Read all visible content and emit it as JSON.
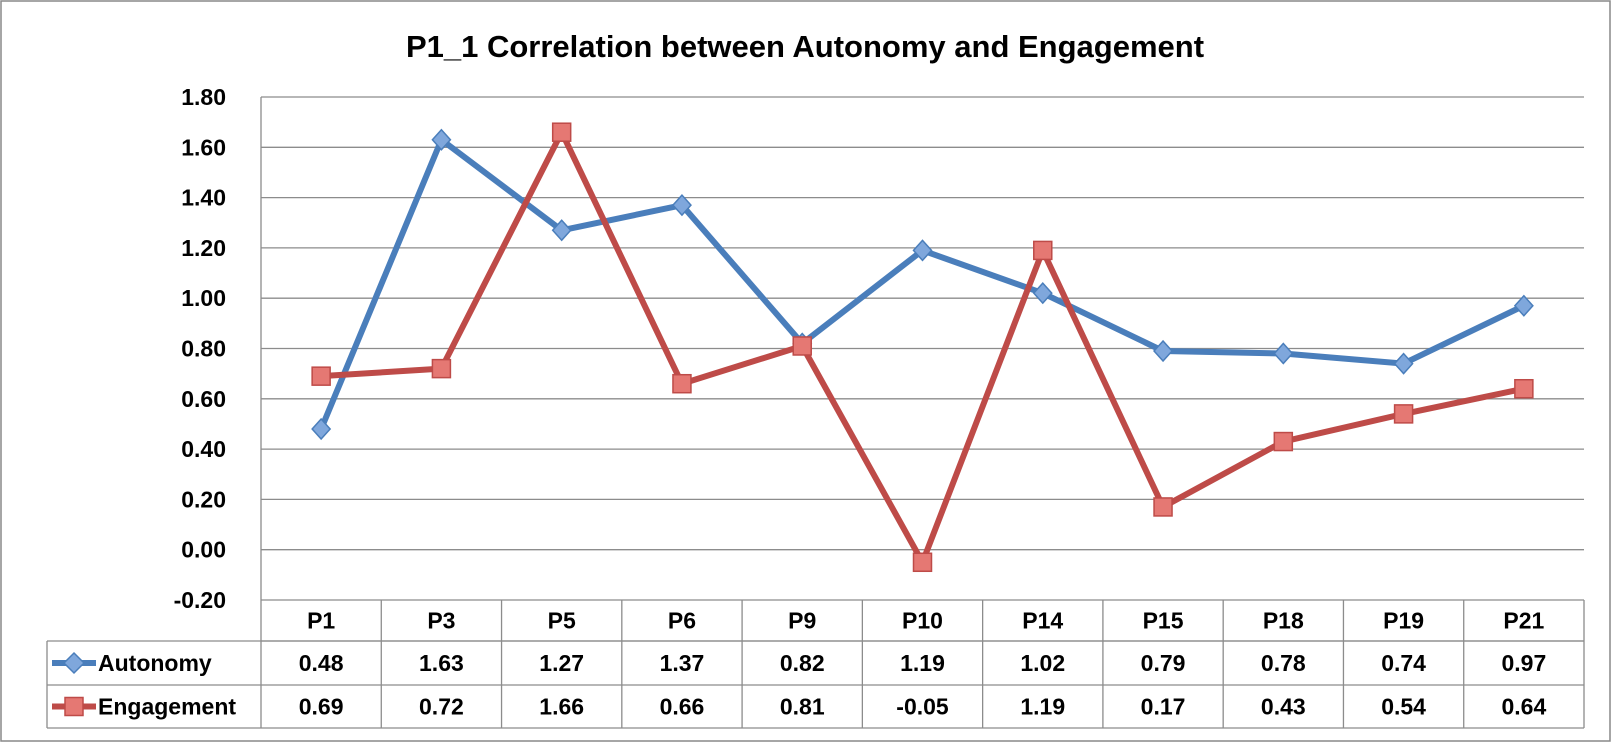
{
  "chart_data": {
    "type": "line",
    "title": "P1_1 Correlation between Autonomy and Engagement",
    "xlabel": "",
    "ylabel": "",
    "categories": [
      "P1",
      "P3",
      "P5",
      "P6",
      "P9",
      "P10",
      "P14",
      "P15",
      "P18",
      "P19",
      "P21"
    ],
    "series": [
      {
        "name": "Autonomy",
        "color": "#4a7ebb",
        "marker": "diamond",
        "values": [
          0.48,
          1.63,
          1.27,
          1.37,
          0.82,
          1.19,
          1.02,
          0.79,
          0.78,
          0.74,
          0.97
        ],
        "labels": [
          "0.48",
          "1.63",
          "1.27",
          "1.37",
          "0.82",
          "1.19",
          "1.02",
          "0.79",
          "0.78",
          "0.74",
          "0.97"
        ]
      },
      {
        "name": "Engagement",
        "color": "#be4b48",
        "marker": "square",
        "values": [
          0.69,
          0.72,
          1.66,
          0.66,
          0.81,
          -0.05,
          1.19,
          0.17,
          0.43,
          0.54,
          0.64
        ],
        "labels": [
          "0.69",
          "0.72",
          "1.66",
          "0.66",
          "0.81",
          "-0.05",
          "1.19",
          "0.17",
          "0.43",
          "0.54",
          "0.64"
        ]
      }
    ],
    "ylim": [
      -0.2,
      1.8
    ],
    "yticks": [
      "-0.20",
      "0.00",
      "0.20",
      "0.40",
      "0.60",
      "0.80",
      "1.00",
      "1.20",
      "1.40",
      "1.60",
      "1.80"
    ],
    "grid": true,
    "legend": "data-table-bottom"
  }
}
